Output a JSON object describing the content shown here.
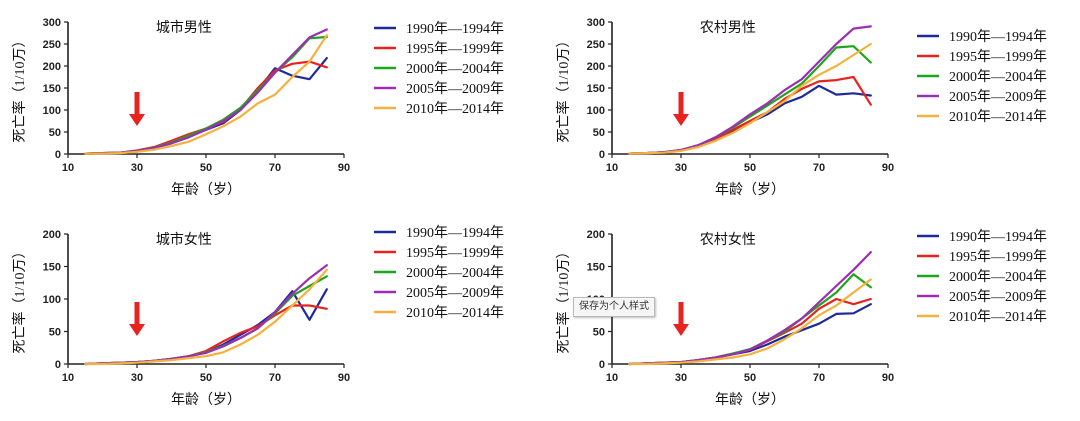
{
  "colors": {
    "series": [
      "#1f2a9a",
      "#e8231f",
      "#1ea51c",
      "#9b2fb3",
      "#f4b13c"
    ],
    "arrow": "#e8231f",
    "axis": "#222222"
  },
  "tooltip": {
    "text": "保存为个人样式"
  },
  "chart_data": [
    {
      "type": "line",
      "title": "城市男性",
      "xlabel": "年龄（岁）",
      "ylabel": "死亡率（1/10万）",
      "xlim": [
        10,
        90
      ],
      "ylim": [
        0,
        300
      ],
      "xticks": [
        10,
        30,
        50,
        70,
        90
      ],
      "yticks": [
        0,
        50,
        100,
        150,
        200,
        250,
        300
      ],
      "arrow_x": 30,
      "legend_position": "right",
      "x": [
        15,
        20,
        25,
        30,
        35,
        40,
        45,
        50,
        55,
        60,
        65,
        70,
        75,
        80,
        85
      ],
      "series": [
        {
          "name": "1990年—1994年",
          "values": [
            1,
            2,
            3,
            7,
            14,
            25,
            40,
            55,
            70,
            100,
            145,
            195,
            178,
            170,
            218
          ]
        },
        {
          "name": "1995年—1999年",
          "values": [
            1,
            2,
            3,
            8,
            16,
            30,
            45,
            58,
            73,
            102,
            150,
            190,
            205,
            210,
            197
          ]
        },
        {
          "name": "2000年—2004年",
          "values": [
            1,
            2,
            3,
            7,
            15,
            26,
            42,
            58,
            78,
            105,
            145,
            185,
            220,
            263,
            266
          ]
        },
        {
          "name": "2005年—2009年",
          "values": [
            1,
            2,
            3,
            7,
            14,
            24,
            38,
            55,
            75,
            100,
            140,
            185,
            225,
            265,
            283
          ]
        },
        {
          "name": "2010年—2014年",
          "values": [
            1,
            1,
            2,
            5,
            10,
            18,
            28,
            45,
            63,
            85,
            115,
            135,
            175,
            210,
            270
          ]
        }
      ]
    },
    {
      "type": "line",
      "title": "农村男性",
      "xlabel": "年龄（岁）",
      "ylabel": "死亡率（1/10万）",
      "xlim": [
        10,
        90
      ],
      "ylim": [
        0,
        300
      ],
      "xticks": [
        10,
        30,
        50,
        70,
        90
      ],
      "yticks": [
        0,
        50,
        100,
        150,
        200,
        250,
        300
      ],
      "arrow_x": 30,
      "legend_position": "right",
      "x": [
        15,
        20,
        25,
        30,
        35,
        40,
        45,
        50,
        55,
        60,
        65,
        70,
        75,
        80,
        85
      ],
      "series": [
        {
          "name": "1990年—1994年",
          "values": [
            1,
            2,
            4,
            8,
            18,
            32,
            52,
            72,
            90,
            115,
            130,
            155,
            135,
            138,
            133
          ]
        },
        {
          "name": "1995年—1999年",
          "values": [
            1,
            2,
            4,
            9,
            20,
            35,
            55,
            75,
            95,
            125,
            148,
            165,
            168,
            175,
            112
          ]
        },
        {
          "name": "2000年—2004年",
          "values": [
            1,
            2,
            4,
            9,
            20,
            38,
            60,
            85,
            110,
            135,
            160,
            200,
            242,
            245,
            208
          ]
        },
        {
          "name": "2005年—2009年",
          "values": [
            1,
            2,
            4,
            9,
            20,
            38,
            62,
            90,
            115,
            145,
            170,
            210,
            250,
            285,
            290
          ]
        },
        {
          "name": "2010年—2014年",
          "values": [
            1,
            2,
            3,
            7,
            16,
            30,
            48,
            70,
            95,
            120,
            155,
            180,
            200,
            225,
            250
          ]
        }
      ]
    },
    {
      "type": "line",
      "title": "城市女性",
      "xlabel": "年龄（岁）",
      "ylabel": "死亡率（1/10万）",
      "xlim": [
        10,
        90
      ],
      "ylim": [
        0,
        200
      ],
      "xticks": [
        10,
        30,
        50,
        70,
        90
      ],
      "yticks": [
        0,
        50,
        100,
        150,
        200
      ],
      "arrow_x": 30,
      "legend_position": "right",
      "x": [
        15,
        20,
        25,
        30,
        35,
        40,
        45,
        50,
        55,
        60,
        65,
        70,
        75,
        80,
        85
      ],
      "series": [
        {
          "name": "1990年—1994年",
          "values": [
            0,
            1,
            2,
            3,
            5,
            8,
            12,
            18,
            30,
            45,
            60,
            80,
            112,
            68,
            115
          ]
        },
        {
          "name": "1995年—1999年",
          "values": [
            0,
            1,
            2,
            3,
            5,
            8,
            12,
            20,
            35,
            48,
            58,
            75,
            90,
            90,
            85
          ]
        },
        {
          "name": "2000年—2004年",
          "values": [
            0,
            1,
            2,
            3,
            5,
            8,
            12,
            18,
            28,
            40,
            55,
            78,
            105,
            120,
            135
          ]
        },
        {
          "name": "2005年—2009年",
          "values": [
            0,
            1,
            2,
            3,
            5,
            8,
            12,
            17,
            27,
            40,
            55,
            80,
            108,
            132,
            152
          ]
        },
        {
          "name": "2010年—2014年",
          "values": [
            0,
            0,
            1,
            2,
            4,
            6,
            9,
            12,
            18,
            30,
            45,
            65,
            90,
            115,
            145
          ]
        }
      ]
    },
    {
      "type": "line",
      "title": "农村女性",
      "xlabel": "年龄（岁）",
      "ylabel": "死亡率（1/10万）",
      "xlim": [
        10,
        90
      ],
      "ylim": [
        0,
        200
      ],
      "xticks": [
        10,
        30,
        50,
        70,
        90
      ],
      "yticks": [
        0,
        50,
        100,
        150,
        200
      ],
      "arrow_x": 30,
      "legend_position": "right",
      "x": [
        15,
        20,
        25,
        30,
        35,
        40,
        45,
        50,
        55,
        60,
        65,
        70,
        75,
        80,
        85
      ],
      "series": [
        {
          "name": "1990年—1994年",
          "values": [
            0,
            1,
            2,
            3,
            6,
            10,
            15,
            20,
            30,
            42,
            52,
            62,
            77,
            78,
            92
          ]
        },
        {
          "name": "1995年—1999年",
          "values": [
            0,
            1,
            2,
            3,
            6,
            10,
            16,
            22,
            35,
            48,
            62,
            85,
            100,
            92,
            100
          ]
        },
        {
          "name": "2000年—2004年",
          "values": [
            0,
            1,
            2,
            3,
            6,
            10,
            16,
            23,
            36,
            50,
            70,
            90,
            110,
            138,
            118
          ]
        },
        {
          "name": "2005年—2009年",
          "values": [
            0,
            1,
            2,
            3,
            6,
            10,
            15,
            22,
            36,
            52,
            70,
            95,
            120,
            145,
            172
          ]
        },
        {
          "name": "2010年—2014年",
          "values": [
            0,
            0,
            1,
            2,
            4,
            7,
            10,
            15,
            24,
            38,
            55,
            75,
            90,
            110,
            130
          ]
        }
      ]
    }
  ]
}
